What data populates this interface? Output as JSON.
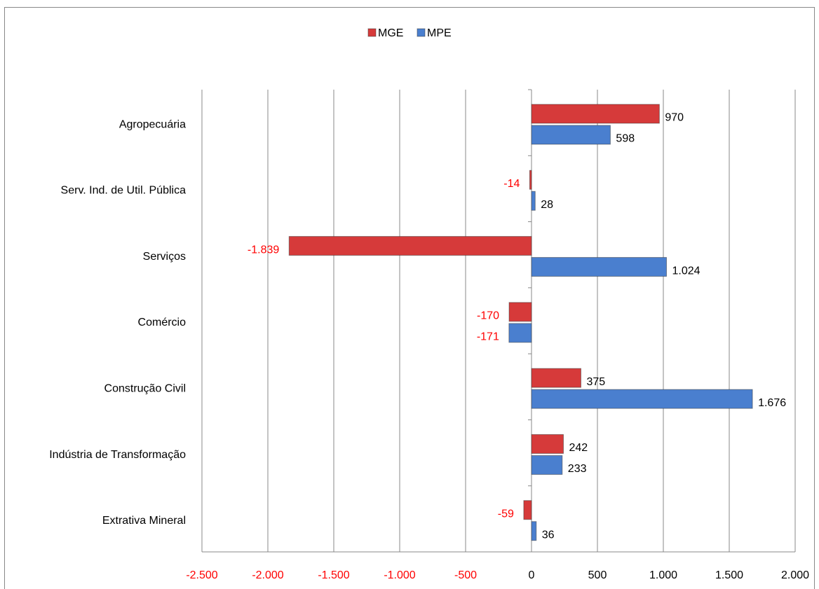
{
  "chart_data": {
    "type": "barh",
    "categories": [
      "Agropecuária",
      "Serv. Ind. de Util. Pública",
      "Serviços",
      "Comércio",
      "Construção Civil",
      "Indústria de Transformação",
      "Extrativa Mineral"
    ],
    "series": [
      {
        "name": "MGE",
        "color": "#d63a3a",
        "values": [
          970,
          -14,
          -1839,
          -170,
          375,
          242,
          -59
        ],
        "value_labels": [
          "970",
          "-14",
          "-1.839",
          "-170",
          "375",
          "242",
          "-59"
        ]
      },
      {
        "name": "MPE",
        "color": "#4a7fcf",
        "values": [
          598,
          28,
          1024,
          -171,
          1676,
          233,
          36
        ],
        "value_labels": [
          "598",
          "28",
          "1.024",
          "-171",
          "1.676",
          "233",
          "36"
        ]
      }
    ],
    "xlim": [
      -2500,
      2000
    ],
    "xticks": [
      {
        "value": -2500,
        "label": "-2.500"
      },
      {
        "value": -2000,
        "label": "-2.000"
      },
      {
        "value": -1500,
        "label": "-1.500"
      },
      {
        "value": -1000,
        "label": "-1.000"
      },
      -500,
      0,
      500,
      {
        "value": 1000,
        "label": "1.000"
      },
      {
        "value": 1500,
        "label": "1.500"
      },
      {
        "value": 2000,
        "label": "2.000"
      }
    ],
    "grid": true,
    "legend": "top",
    "negative_label_color": "#ff0000"
  }
}
